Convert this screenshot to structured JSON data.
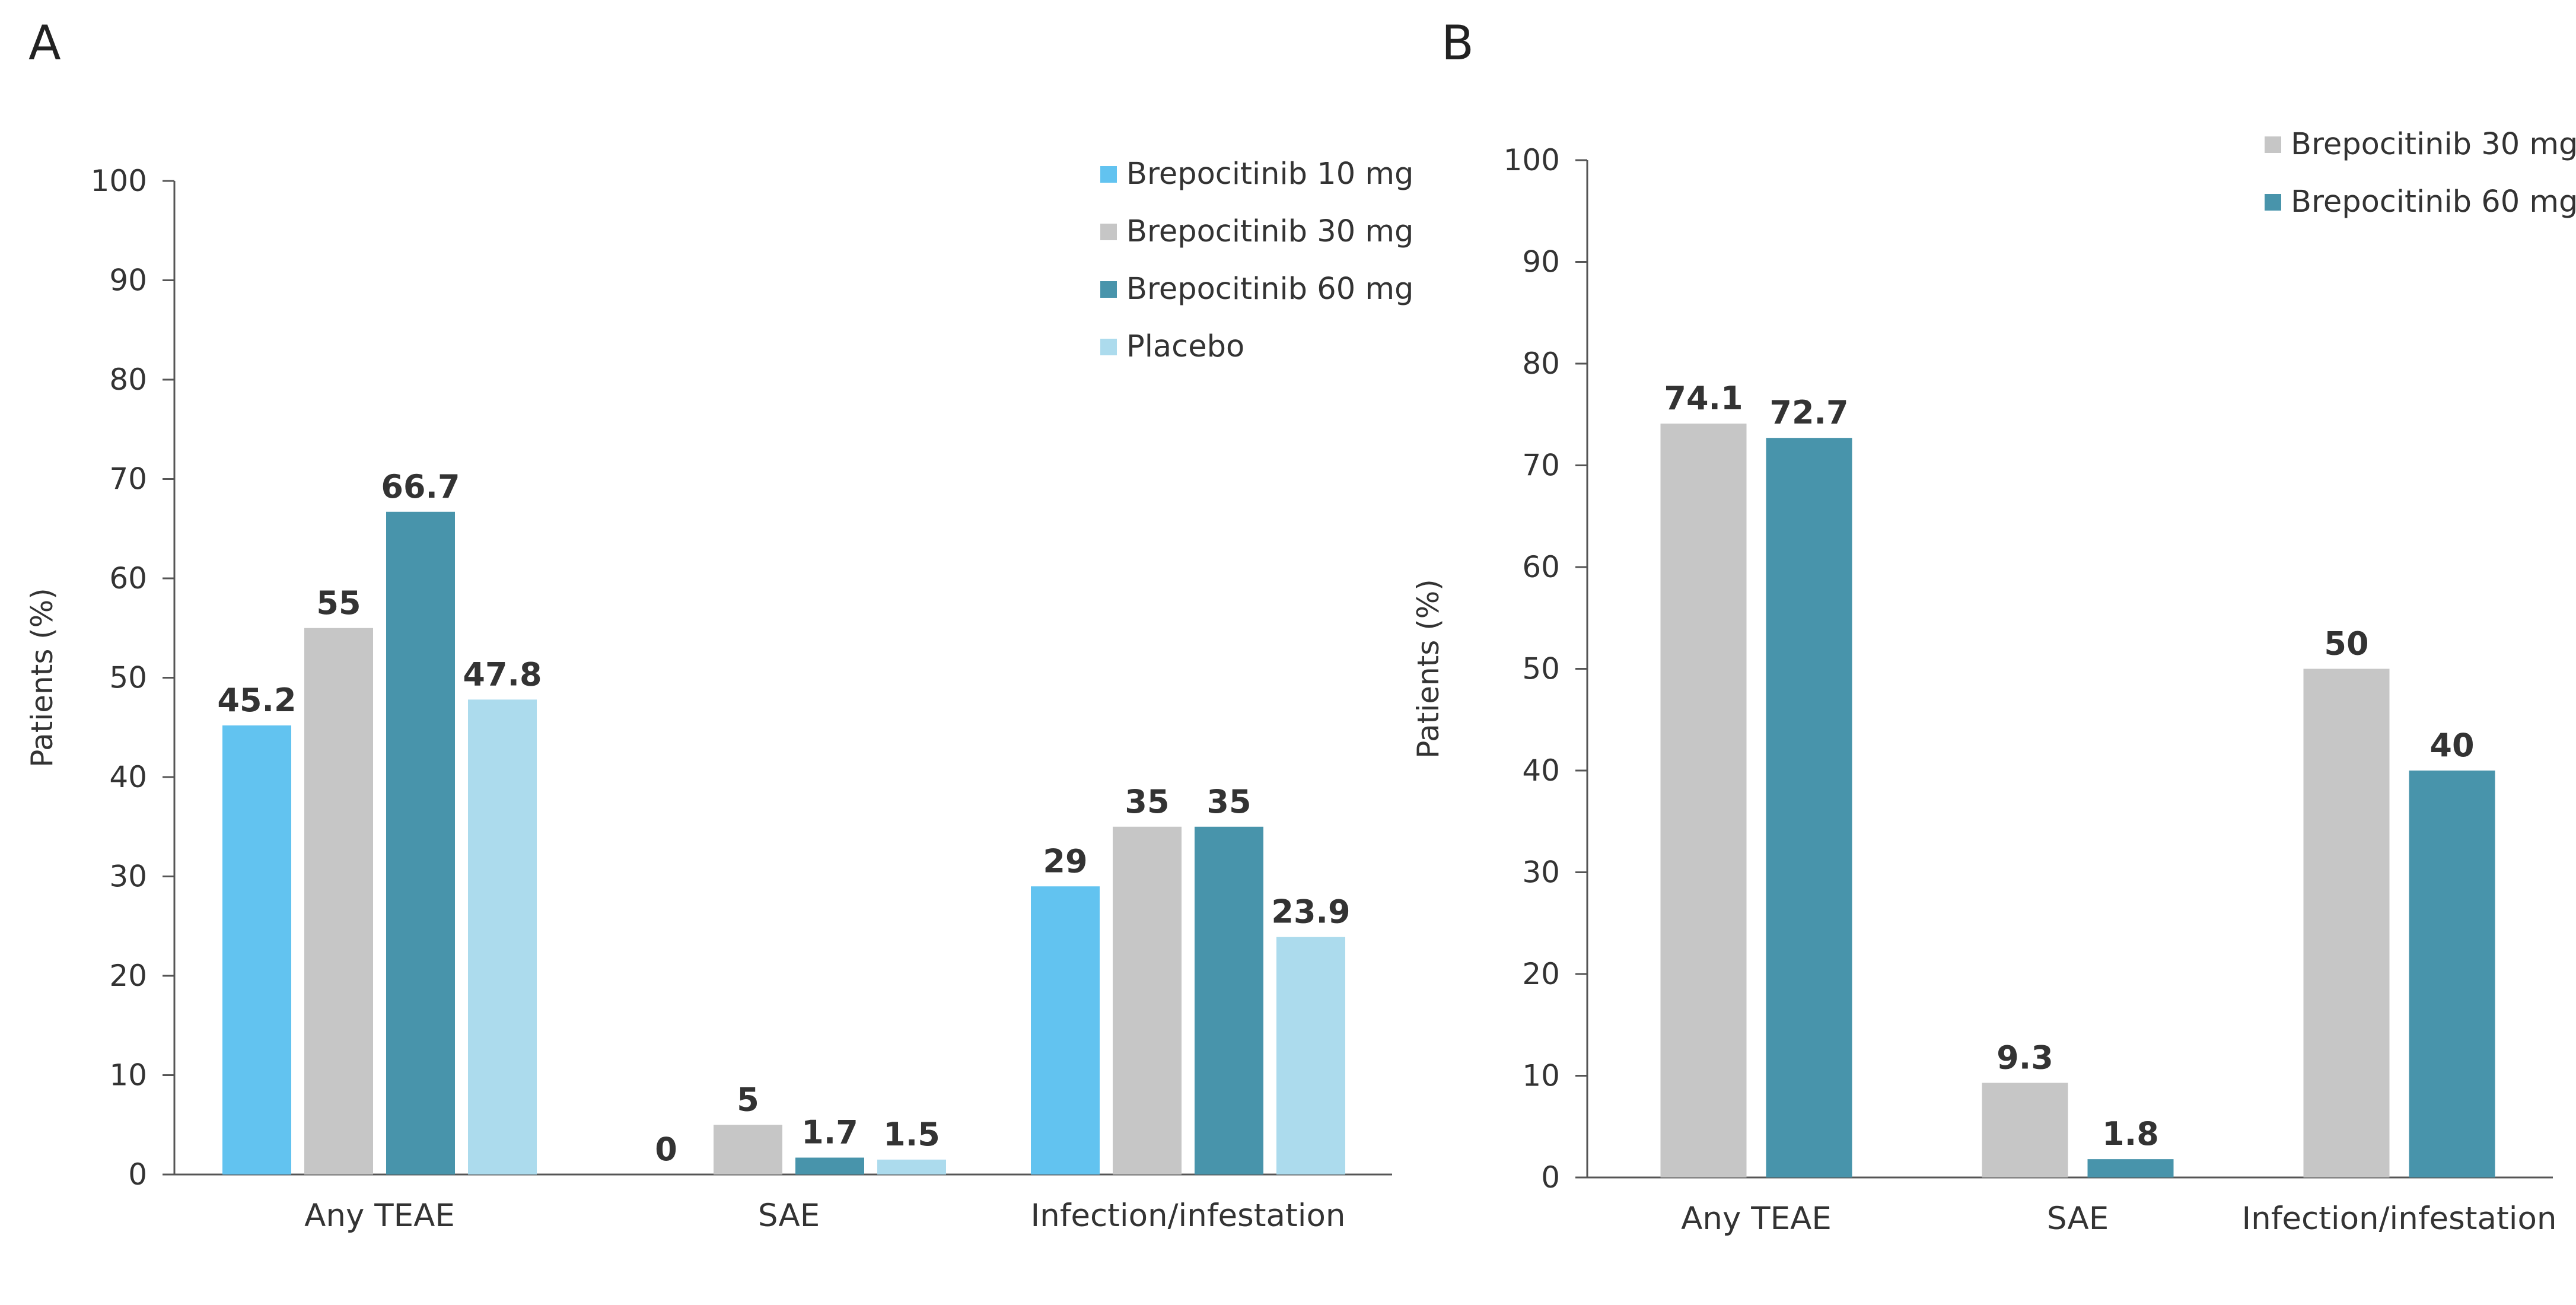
{
  "chart_data": [
    {
      "panel": "A",
      "type": "bar",
      "title": "",
      "xlabel": "",
      "ylabel": "Patients (%)",
      "ylim": [
        0,
        100
      ],
      "yticks": [
        0,
        10,
        20,
        30,
        40,
        50,
        60,
        70,
        80,
        90,
        100
      ],
      "grid": false,
      "legend_position": "top-right",
      "categories": [
        "Any TEAE",
        "SAE",
        "Infection/infestation"
      ],
      "series": [
        {
          "name": "Brepocitinib 10 mg",
          "color": "#62c3f0",
          "values": [
            45.2,
            0,
            29
          ]
        },
        {
          "name": "Brepocitinib 30 mg",
          "color": "#c6c6c6",
          "values": [
            55,
            5,
            35
          ]
        },
        {
          "name": "Brepocitinib 60 mg",
          "color": "#4894ab",
          "values": [
            66.7,
            1.7,
            35
          ]
        },
        {
          "name": "Placebo",
          "color": "#acdbed",
          "values": [
            47.8,
            1.5,
            23.9
          ]
        }
      ]
    },
    {
      "panel": "B",
      "type": "bar",
      "title": "",
      "xlabel": "",
      "ylabel": "Patients (%)",
      "ylim": [
        0,
        100
      ],
      "yticks": [
        0,
        10,
        20,
        30,
        40,
        50,
        60,
        70,
        80,
        90,
        100
      ],
      "grid": false,
      "legend_position": "top-right",
      "categories": [
        "Any TEAE",
        "SAE",
        "Infection/infestation"
      ],
      "series": [
        {
          "name": "Brepocitinib 30 mg",
          "color": "#c6c6c6",
          "values": [
            74.1,
            9.3,
            50
          ]
        },
        {
          "name": "Brepocitinib 60 mg",
          "color": "#4894ab",
          "values": [
            72.7,
            1.8,
            40
          ]
        }
      ]
    }
  ]
}
